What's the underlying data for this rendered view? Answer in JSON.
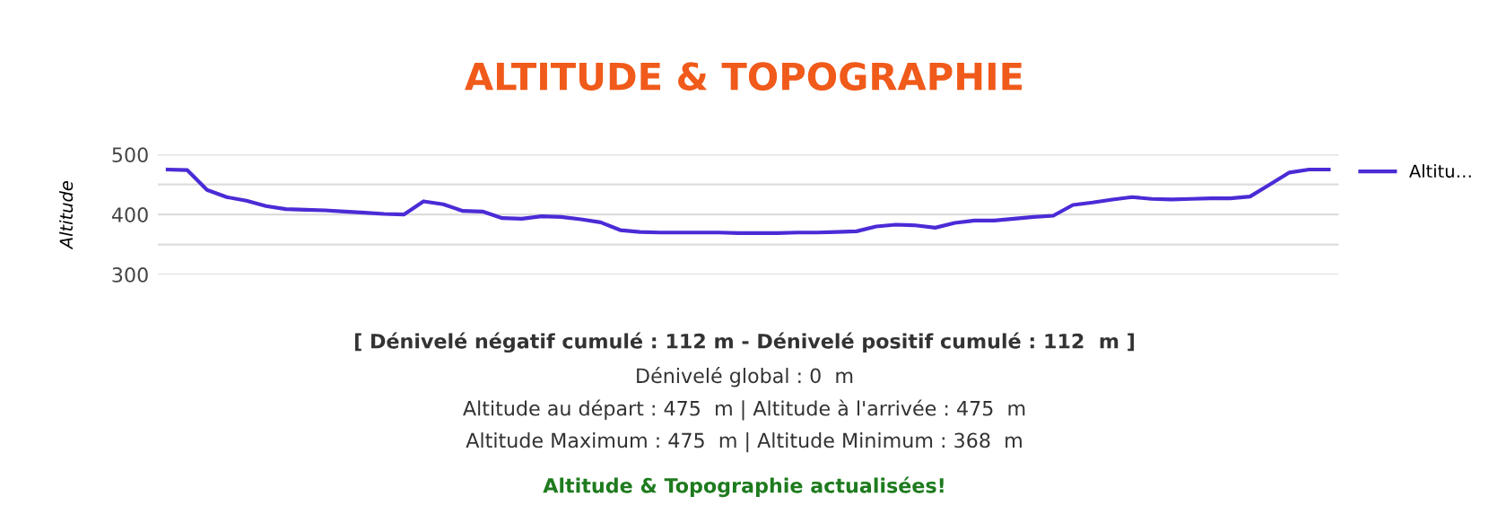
{
  "chart_data": {
    "type": "line",
    "title": "ALTITUDE & TOPOGRAPHIE",
    "ylabel": "Altitude",
    "categories": [
      null,
      null,
      null,
      null,
      null,
      null,
      null,
      null,
      null,
      null,
      null,
      null,
      null,
      null,
      null,
      null,
      null,
      null,
      null,
      null,
      null,
      null,
      null,
      null,
      null,
      null,
      null,
      null,
      null,
      null,
      null,
      null,
      null,
      null,
      null,
      null,
      null,
      null,
      null,
      null,
      null,
      null,
      null,
      null,
      null,
      null,
      null,
      null,
      null,
      null,
      null,
      null,
      null,
      null,
      null,
      null,
      null,
      null,
      null,
      null
    ],
    "series": [
      {
        "name": "Altitu…",
        "color": "#4b2bd6",
        "values": [
          475,
          474,
          441,
          429,
          423,
          414,
          409,
          408,
          407,
          405,
          403,
          401,
          400,
          422,
          417,
          406,
          405,
          394,
          393,
          397,
          396,
          392,
          387,
          374,
          371,
          370,
          370,
          370,
          370,
          369,
          369,
          369,
          370,
          370,
          371,
          372,
          380,
          383,
          382,
          378,
          386,
          390,
          390,
          393,
          396,
          398,
          416,
          420,
          425,
          429,
          426,
          425,
          426,
          427,
          427,
          430,
          450,
          470,
          475,
          475
        ]
      }
    ],
    "ylim": [
      300,
      500
    ],
    "yticks": [
      300,
      {
        "value": 350,
        "label": null
      },
      400,
      {
        "value": 450,
        "label": null
      },
      500
    ],
    "grid": "y",
    "legend": "right",
    "marker": "none",
    "line_style": "solid",
    "tick_labels": "y",
    "annotations": [
      "[ Dénivelé négatif cumulé : 112 m - Dénivelé positif cumulé : 112  m ]",
      "Dénivelé global : 0  m",
      "Altitude au départ : 475  m | Altitude à l'arrivée : 475  m",
      "Altitude Maximum : 475  m | Altitude Minimum : 368  m",
      "Altitude & Topographie actualisées!"
    ]
  }
}
